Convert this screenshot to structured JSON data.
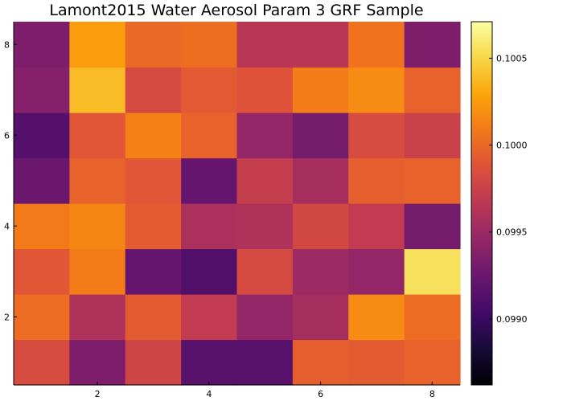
{
  "chart_data": {
    "type": "heatmap",
    "title": "Lamont2015 Water Aerosol Param 3 GRF Sample",
    "xlabel": "",
    "ylabel": "",
    "x_range": [
      0.5,
      8.5
    ],
    "y_range": [
      0.5,
      8.5
    ],
    "x_ticks": [
      2,
      4,
      6,
      8
    ],
    "y_ticks": [
      2,
      4,
      6,
      8
    ],
    "grid": false,
    "colormap": "inferno",
    "color_range": [
      0.09862,
      0.10071
    ],
    "colorbar_ticks": [
      0.099,
      0.0995,
      0.1,
      0.1005
    ],
    "colorbar_tick_labels": [
      "0.0990",
      "0.0995",
      "0.1000",
      "0.1005"
    ],
    "rows_bottom_to_top": [
      [
        0.09983,
        0.09935,
        0.09978,
        0.09915,
        0.09915,
        0.09995,
        0.09993,
        0.09997
      ],
      [
        0.10002,
        0.0996,
        0.09993,
        0.0997,
        0.09945,
        0.09955,
        0.10017,
        0.10002
      ],
      [
        0.0999,
        0.1001,
        0.09922,
        0.09912,
        0.09982,
        0.0995,
        0.09945,
        0.10055
      ],
      [
        0.10009,
        0.10015,
        0.09993,
        0.09958,
        0.0996,
        0.0998,
        0.0997,
        0.0993
      ],
      [
        0.09925,
        0.09997,
        0.0999,
        0.09922,
        0.09972,
        0.09955,
        0.09995,
        0.09997
      ],
      [
        0.09913,
        0.0999,
        0.10012,
        0.09997,
        0.09945,
        0.0993,
        0.09983,
        0.09975
      ],
      [
        0.09938,
        0.10039,
        0.09982,
        0.09992,
        0.09988,
        0.1001,
        0.10017,
        0.09997
      ],
      [
        0.09935,
        0.10025,
        0.1,
        0.10003,
        0.09965,
        0.09965,
        0.10005,
        0.09935
      ]
    ]
  }
}
